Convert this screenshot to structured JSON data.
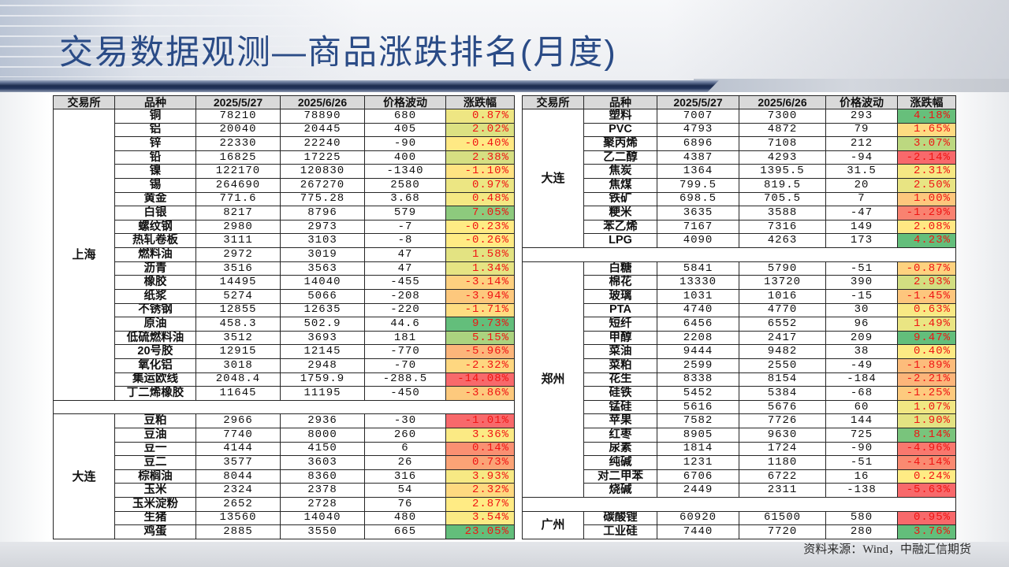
{
  "title": "交易数据观测—商品涨跌排名(月度)",
  "source": "资料来源：Wind，中融汇信期货",
  "header_fill": "#D9D9D9",
  "pct_text_color": "#F01414",
  "color_scale": {
    "min": "#F8696B",
    "mid": "#FFEB84",
    "max": "#63BE7B"
  },
  "tables": [
    {
      "headers": [
        "交易所",
        "品种",
        "2025/5/27",
        "2025/6/26",
        "价格波动",
        "涨跌幅"
      ],
      "groups": [
        {
          "exchange": "上海",
          "rows": [
            {
              "name": "铜",
              "start": "78210",
              "end": "78890",
              "change": "680",
              "pct": "0.87%"
            },
            {
              "name": "铝",
              "start": "20040",
              "end": "20445",
              "change": "405",
              "pct": "2.02%"
            },
            {
              "name": "锌",
              "start": "22330",
              "end": "22240",
              "change": "-90",
              "pct": "-0.40%"
            },
            {
              "name": "铅",
              "start": "16825",
              "end": "17225",
              "change": "400",
              "pct": "2.38%"
            },
            {
              "name": "镍",
              "start": "122170",
              "end": "120830",
              "change": "-1340",
              "pct": "-1.10%"
            },
            {
              "name": "锡",
              "start": "264690",
              "end": "267270",
              "change": "2580",
              "pct": "0.97%"
            },
            {
              "name": "黄金",
              "start": "771.6",
              "end": "775.28",
              "change": "3.68",
              "pct": "0.48%"
            },
            {
              "name": "白银",
              "start": "8217",
              "end": "8796",
              "change": "579",
              "pct": "7.05%"
            },
            {
              "name": "螺纹钢",
              "start": "2980",
              "end": "2973",
              "change": "-7",
              "pct": "-0.23%"
            },
            {
              "name": "热轧卷板",
              "start": "3111",
              "end": "3103",
              "change": "-8",
              "pct": "-0.26%"
            },
            {
              "name": "燃料油",
              "start": "2972",
              "end": "3019",
              "change": "47",
              "pct": "1.58%"
            },
            {
              "name": "沥青",
              "start": "3516",
              "end": "3563",
              "change": "47",
              "pct": "1.34%"
            },
            {
              "name": "橡胶",
              "start": "14495",
              "end": "14040",
              "change": "-455",
              "pct": "-3.14%"
            },
            {
              "name": "纸浆",
              "start": "5274",
              "end": "5066",
              "change": "-208",
              "pct": "-3.94%"
            },
            {
              "name": "不锈钢",
              "start": "12855",
              "end": "12635",
              "change": "-220",
              "pct": "-1.71%"
            },
            {
              "name": "原油",
              "start": "458.3",
              "end": "502.9",
              "change": "44.6",
              "pct": "9.73%"
            },
            {
              "name": "低硫燃料油",
              "start": "3512",
              "end": "3693",
              "change": "181",
              "pct": "5.15%"
            },
            {
              "name": "20号胶",
              "start": "12915",
              "end": "12145",
              "change": "-770",
              "pct": "-5.96%"
            },
            {
              "name": "氧化铝",
              "start": "3018",
              "end": "2948",
              "change": "-70",
              "pct": "-2.32%"
            },
            {
              "name": "集运欧线",
              "start": "2048.4",
              "end": "1759.9",
              "change": "-288.5",
              "pct": "-14.08%"
            },
            {
              "name": "丁二烯橡胶",
              "start": "11645",
              "end": "11195",
              "change": "-450",
              "pct": "-3.86%"
            }
          ]
        },
        {
          "exchange": "大连",
          "rows": [
            {
              "name": "豆粕",
              "start": "2966",
              "end": "2936",
              "change": "-30",
              "pct": "-1.01%"
            },
            {
              "name": "豆油",
              "start": "7740",
              "end": "8000",
              "change": "260",
              "pct": "3.36%"
            },
            {
              "name": "豆一",
              "start": "4144",
              "end": "4150",
              "change": "6",
              "pct": "0.14%"
            },
            {
              "name": "豆二",
              "start": "3577",
              "end": "3603",
              "change": "26",
              "pct": "0.73%"
            },
            {
              "name": "棕榈油",
              "start": "8044",
              "end": "8360",
              "change": "316",
              "pct": "3.93%"
            },
            {
              "name": "玉米",
              "start": "2324",
              "end": "2378",
              "change": "54",
              "pct": "2.32%"
            },
            {
              "name": "玉米淀粉",
              "start": "2652",
              "end": "2728",
              "change": "76",
              "pct": "2.87%"
            },
            {
              "name": "生猪",
              "start": "13560",
              "end": "14040",
              "change": "480",
              "pct": "3.54%"
            },
            {
              "name": "鸡蛋",
              "start": "2885",
              "end": "3550",
              "change": "665",
              "pct": "23.05%"
            }
          ]
        }
      ]
    },
    {
      "headers": [
        "交易所",
        "品种",
        "2025/5/27",
        "2025/6/26",
        "价格波动",
        "涨跌幅"
      ],
      "groups": [
        {
          "exchange": "大连",
          "rows": [
            {
              "name": "塑料",
              "start": "7007",
              "end": "7300",
              "change": "293",
              "pct": "4.18%"
            },
            {
              "name": "PVC",
              "start": "4793",
              "end": "4872",
              "change": "79",
              "pct": "1.65%"
            },
            {
              "name": "聚丙烯",
              "start": "6896",
              "end": "7108",
              "change": "212",
              "pct": "3.07%"
            },
            {
              "name": "乙二醇",
              "start": "4387",
              "end": "4293",
              "change": "-94",
              "pct": "-2.14%"
            },
            {
              "name": "焦炭",
              "start": "1364",
              "end": "1395.5",
              "change": "31.5",
              "pct": "2.31%"
            },
            {
              "name": "焦煤",
              "start": "799.5",
              "end": "819.5",
              "change": "20",
              "pct": "2.50%"
            },
            {
              "name": "铁矿",
              "start": "698.5",
              "end": "705.5",
              "change": "7",
              "pct": "1.00%"
            },
            {
              "name": "粳米",
              "start": "3635",
              "end": "3588",
              "change": "-47",
              "pct": "-1.29%"
            },
            {
              "name": "苯乙烯",
              "start": "7167",
              "end": "7316",
              "change": "149",
              "pct": "2.08%"
            },
            {
              "name": "LPG",
              "start": "4090",
              "end": "4263",
              "change": "173",
              "pct": "4.23%"
            }
          ]
        },
        {
          "exchange": "郑州",
          "rows": [
            {
              "name": "白糖",
              "start": "5841",
              "end": "5790",
              "change": "-51",
              "pct": "-0.87%"
            },
            {
              "name": "棉花",
              "start": "13330",
              "end": "13720",
              "change": "390",
              "pct": "2.93%"
            },
            {
              "name": "玻璃",
              "start": "1031",
              "end": "1016",
              "change": "-15",
              "pct": "-1.45%"
            },
            {
              "name": "PTA",
              "start": "4740",
              "end": "4770",
              "change": "30",
              "pct": "0.63%"
            },
            {
              "name": "短纤",
              "start": "6456",
              "end": "6552",
              "change": "96",
              "pct": "1.49%"
            },
            {
              "name": "甲醇",
              "start": "2208",
              "end": "2417",
              "change": "209",
              "pct": "9.47%"
            },
            {
              "name": "菜油",
              "start": "9444",
              "end": "9482",
              "change": "38",
              "pct": "0.40%"
            },
            {
              "name": "菜粕",
              "start": "2599",
              "end": "2550",
              "change": "-49",
              "pct": "-1.89%"
            },
            {
              "name": "花生",
              "start": "8338",
              "end": "8154",
              "change": "-184",
              "pct": "-2.21%"
            },
            {
              "name": "硅铁",
              "start": "5452",
              "end": "5384",
              "change": "-68",
              "pct": "-1.25%"
            },
            {
              "name": "锰硅",
              "start": "5616",
              "end": "5676",
              "change": "60",
              "pct": "1.07%"
            },
            {
              "name": "苹果",
              "start": "7582",
              "end": "7726",
              "change": "144",
              "pct": "1.90%"
            },
            {
              "name": "红枣",
              "start": "8905",
              "end": "9630",
              "change": "725",
              "pct": "8.14%"
            },
            {
              "name": "尿素",
              "start": "1814",
              "end": "1724",
              "change": "-90",
              "pct": "-4.96%"
            },
            {
              "name": "纯碱",
              "start": "1231",
              "end": "1180",
              "change": "-51",
              "pct": "-4.14%"
            },
            {
              "name": "对二甲苯",
              "start": "6706",
              "end": "6722",
              "change": "16",
              "pct": "0.24%"
            },
            {
              "name": "烧碱",
              "start": "2449",
              "end": "2311",
              "change": "-138",
              "pct": "-5.63%"
            }
          ]
        },
        {
          "exchange": "广州",
          "rows": [
            {
              "name": "碳酸锂",
              "start": "60920",
              "end": "61500",
              "change": "580",
              "pct": "0.95%"
            },
            {
              "name": "工业硅",
              "start": "7440",
              "end": "7720",
              "change": "280",
              "pct": "3.76%"
            }
          ]
        }
      ]
    }
  ]
}
